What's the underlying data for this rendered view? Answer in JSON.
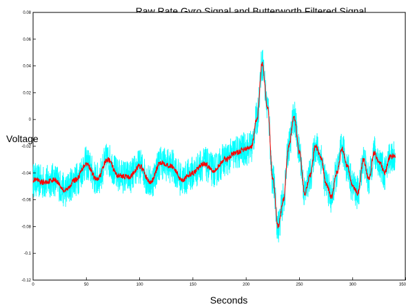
{
  "chart_data": {
    "type": "line",
    "title": "Raw Rate Gyro Signal and Butterworth Filtered Signal",
    "xlabel": "Seconds",
    "ylabel": "Voltage",
    "xlim": [
      0,
      350
    ],
    "ylim": [
      -0.12,
      0.08
    ],
    "xticks": [
      0,
      50,
      100,
      150,
      200,
      250,
      300,
      350
    ],
    "yticks": [
      -0.12,
      -0.1,
      -0.08,
      -0.06,
      -0.04,
      -0.02,
      0,
      0.02,
      0.04,
      0.06,
      0.08
    ],
    "ytick_labels": [
      "-0.12",
      "-0.1",
      "-0.08",
      "-0.06",
      "-0.04",
      "-0.02",
      "0",
      "0.02",
      "0.04",
      "0.06",
      "0.08"
    ],
    "grid": false,
    "series": [
      {
        "role": "raw",
        "color": "#00ffff",
        "x": [
          0,
          10,
          20,
          30,
          40,
          50,
          60,
          70,
          80,
          90,
          100,
          110,
          120,
          130,
          140,
          150,
          160,
          170,
          180,
          190,
          200,
          205,
          210,
          215,
          220,
          225,
          230,
          235,
          240,
          245,
          250,
          255,
          260,
          265,
          270,
          275,
          280,
          285,
          290,
          295,
          300,
          305,
          310,
          315,
          320,
          325,
          330,
          335,
          340
        ],
        "y": [
          -0.045,
          -0.047,
          -0.045,
          -0.053,
          -0.045,
          -0.033,
          -0.045,
          -0.03,
          -0.042,
          -0.043,
          -0.035,
          -0.047,
          -0.032,
          -0.035,
          -0.045,
          -0.04,
          -0.033,
          -0.038,
          -0.03,
          -0.025,
          -0.022,
          -0.02,
          0.0,
          0.042,
          0.01,
          -0.045,
          -0.08,
          -0.06,
          -0.02,
          0.002,
          -0.025,
          -0.055,
          -0.042,
          -0.02,
          -0.028,
          -0.048,
          -0.058,
          -0.04,
          -0.022,
          -0.035,
          -0.05,
          -0.055,
          -0.03,
          -0.045,
          -0.025,
          -0.032,
          -0.04,
          -0.028,
          -0.027
        ],
        "noise_amplitude": 0.013
      },
      {
        "role": "filtered",
        "color": "#ff0000",
        "x": [
          0,
          10,
          20,
          30,
          40,
          50,
          60,
          70,
          80,
          90,
          100,
          110,
          120,
          130,
          140,
          150,
          160,
          170,
          180,
          190,
          200,
          205,
          210,
          215,
          220,
          225,
          230,
          235,
          240,
          245,
          250,
          255,
          260,
          265,
          270,
          275,
          280,
          285,
          290,
          295,
          300,
          305,
          310,
          315,
          320,
          325,
          330,
          335,
          340
        ],
        "y": [
          -0.045,
          -0.047,
          -0.045,
          -0.053,
          -0.045,
          -0.033,
          -0.045,
          -0.03,
          -0.042,
          -0.043,
          -0.035,
          -0.047,
          -0.032,
          -0.035,
          -0.045,
          -0.04,
          -0.033,
          -0.038,
          -0.03,
          -0.025,
          -0.022,
          -0.02,
          0.0,
          0.042,
          0.01,
          -0.045,
          -0.08,
          -0.06,
          -0.02,
          0.002,
          -0.025,
          -0.055,
          -0.042,
          -0.02,
          -0.028,
          -0.048,
          -0.058,
          -0.04,
          -0.022,
          -0.035,
          -0.05,
          -0.055,
          -0.03,
          -0.045,
          -0.025,
          -0.032,
          -0.04,
          -0.028,
          -0.027
        ],
        "noise_amplitude": 0.002
      }
    ]
  }
}
